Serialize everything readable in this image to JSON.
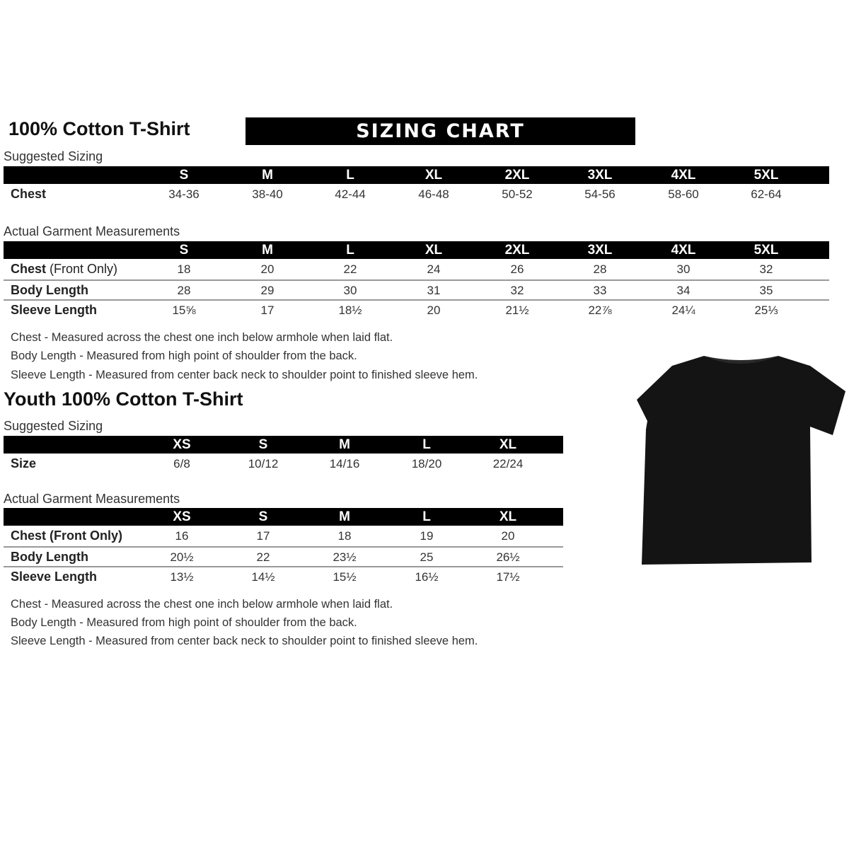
{
  "adult": {
    "title": "100% Cotton T-Shirt",
    "banner": "SIZING CHART",
    "suggested": {
      "label": "Suggested Sizing",
      "sizes": [
        "S",
        "M",
        "L",
        "XL",
        "2XL",
        "3XL",
        "4XL",
        "5XL"
      ],
      "rows": [
        {
          "label": "Chest",
          "values": [
            "34-36",
            "38-40",
            "42-44",
            "46-48",
            "50-52",
            "54-56",
            "58-60",
            "62-64"
          ]
        }
      ]
    },
    "actual": {
      "label": "Actual Garment Measurements",
      "sizes": [
        "S",
        "M",
        "L",
        "XL",
        "2XL",
        "3XL",
        "4XL",
        "5XL"
      ],
      "rows": [
        {
          "label": "Chest",
          "label_extra": " (Front Only)",
          "values": [
            "18",
            "20",
            "22",
            "24",
            "26",
            "28",
            "30",
            "32"
          ]
        },
        {
          "label": "Body Length",
          "values": [
            "28",
            "29",
            "30",
            "31",
            "32",
            "33",
            "34",
            "35"
          ]
        },
        {
          "label": "Sleeve Length",
          "values": [
            "15⅝",
            "17",
            "18½",
            "20",
            "21½",
            "22⅞",
            "24¼",
            "25⅓"
          ]
        }
      ]
    },
    "notes": [
      "Chest - Measured across the chest one inch below armhole when laid flat.",
      "Body Length - Measured from high point of shoulder from the back.",
      "Sleeve Length - Measured from center back neck to shoulder point to finished sleeve hem."
    ]
  },
  "youth": {
    "title": "Youth 100% Cotton T-Shirt",
    "suggested": {
      "label": "Suggested Sizing",
      "sizes": [
        "XS",
        "S",
        "M",
        "L",
        "XL"
      ],
      "rows": [
        {
          "label": "Size",
          "values": [
            "6/8",
            "10/12",
            "14/16",
            "18/20",
            "22/24"
          ]
        }
      ]
    },
    "actual": {
      "label": "Actual Garment Measurements",
      "sizes": [
        "XS",
        "S",
        "M",
        "L",
        "XL"
      ],
      "rows": [
        {
          "label": "Chest (Front Only)",
          "values": [
            "16",
            "17",
            "18",
            "19",
            "20"
          ]
        },
        {
          "label": "Body Length",
          "values": [
            "20½",
            "22",
            "23½",
            "25",
            "26½"
          ]
        },
        {
          "label": "Sleeve Length",
          "values": [
            "13½",
            "14½",
            "15½",
            "16½",
            "17½"
          ]
        }
      ]
    },
    "notes": [
      "Chest - Measured across the chest one inch below armhole when laid flat.",
      "Body Length - Measured from high point of shoulder from the back.",
      "Sleeve Length - Measured from center back neck to shoulder point to finished sleeve hem."
    ]
  },
  "image": {
    "icon": "black-tshirt-icon",
    "color": "#111111"
  }
}
